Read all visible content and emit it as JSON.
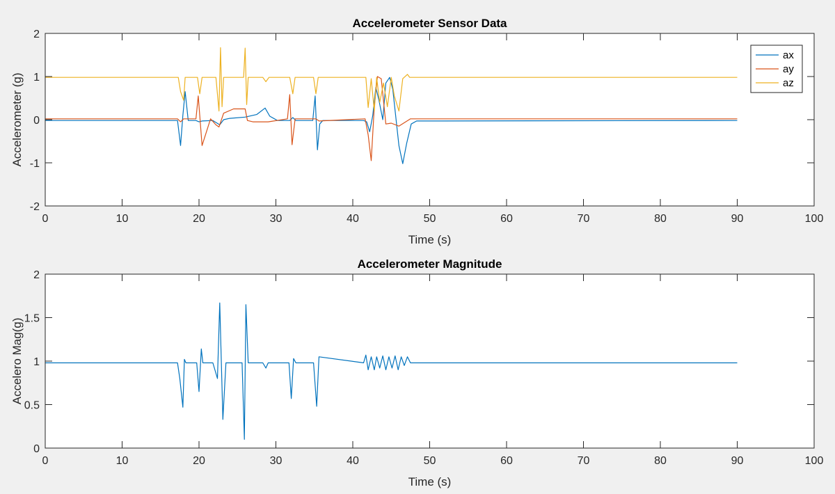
{
  "chart_data": [
    {
      "type": "line",
      "title": "Accelerometer Sensor Data",
      "xlabel": "Time (s)",
      "ylabel": "Accelerometer (g)",
      "xlim": [
        0,
        100
      ],
      "ylim": [
        -2,
        2
      ],
      "xticks": [
        "0",
        "10",
        "20",
        "30",
        "40",
        "50",
        "60",
        "70",
        "80",
        "90",
        "100"
      ],
      "yticks": [
        "-2",
        "-1",
        "0",
        "1",
        "2"
      ],
      "grid": false,
      "legend_position": "top-right",
      "series": [
        {
          "name": "ax",
          "color": "#0072BD",
          "x": [
            0,
            17.2,
            17.6,
            17.9,
            18.2,
            18.6,
            19.6,
            20.0,
            20.4,
            21.8,
            22.7,
            23.2,
            24.0,
            26.0,
            27.5,
            28.6,
            29.2,
            30.2,
            31.8,
            32.2,
            32.6,
            34.8,
            35.1,
            35.4,
            35.7,
            36.1,
            41.4,
            41.8,
            42.2,
            42.6,
            43.0,
            43.4,
            43.9,
            44.3,
            44.8,
            45.2,
            45.6,
            46.0,
            46.5,
            47.0,
            47.6,
            48.3,
            90
          ],
          "y": [
            -0.02,
            -0.02,
            -0.6,
            0.1,
            0.65,
            -0.02,
            -0.02,
            -0.05,
            -0.03,
            -0.02,
            -0.12,
            0.0,
            0.03,
            0.06,
            0.12,
            0.27,
            0.08,
            -0.02,
            -0.02,
            0.05,
            -0.02,
            -0.02,
            0.55,
            -0.7,
            -0.1,
            -0.02,
            -0.02,
            -0.05,
            -0.28,
            0.1,
            0.75,
            0.45,
            0.0,
            0.85,
            0.98,
            0.7,
            0.05,
            -0.6,
            -1.02,
            -0.55,
            -0.1,
            -0.03,
            -0.02
          ]
        },
        {
          "name": "ay",
          "color": "#D95319",
          "x": [
            0,
            17.2,
            17.6,
            18.0,
            19.6,
            19.9,
            20.4,
            21.5,
            22.2,
            22.6,
            23.2,
            24.5,
            26.0,
            26.3,
            27.0,
            29.0,
            31.5,
            31.8,
            32.1,
            32.5,
            35.2,
            35.6,
            41.6,
            42.0,
            42.4,
            42.8,
            43.2,
            43.7,
            44.3,
            45.0,
            46.0,
            47.5,
            90
          ],
          "y": [
            0.02,
            0.02,
            -0.05,
            0.02,
            0.02,
            0.55,
            -0.6,
            0.02,
            -0.12,
            -0.17,
            0.15,
            0.25,
            0.25,
            -0.02,
            -0.05,
            -0.05,
            0.02,
            0.58,
            -0.58,
            0.02,
            0.02,
            -0.03,
            0.02,
            -0.35,
            -0.95,
            0.3,
            1.0,
            0.95,
            -0.1,
            -0.08,
            -0.15,
            0.02,
            0.02
          ]
        },
        {
          "name": "az",
          "color": "#EDB120",
          "x": [
            0,
            17.3,
            17.6,
            18.0,
            18.2,
            19.8,
            20.1,
            20.4,
            22.2,
            22.6,
            22.8,
            23.0,
            23.2,
            25.8,
            26.0,
            26.2,
            26.4,
            28.3,
            28.7,
            29.1,
            31.8,
            32.2,
            32.5,
            34.9,
            35.2,
            35.5,
            41.7,
            42.0,
            42.4,
            42.8,
            43.1,
            43.5,
            44.0,
            44.5,
            45.0,
            45.4,
            46.0,
            46.5,
            47.1,
            47.4,
            48.0,
            90
          ],
          "y": [
            0.98,
            0.98,
            0.65,
            0.45,
            0.98,
            0.98,
            0.6,
            0.98,
            0.98,
            0.2,
            1.67,
            0.3,
            0.98,
            0.98,
            1.66,
            0.35,
            0.98,
            0.98,
            0.88,
            0.98,
            0.98,
            0.6,
            0.98,
            0.98,
            0.6,
            0.98,
            0.98,
            0.28,
            0.95,
            0.2,
            0.98,
            0.4,
            0.85,
            0.3,
            0.98,
            0.55,
            0.2,
            0.95,
            1.05,
            0.98,
            0.98,
            0.98
          ]
        }
      ]
    },
    {
      "type": "line",
      "title": "Accelerometer Magnitude",
      "xlabel": "Time (s)",
      "ylabel": "Accelero Mag(g)",
      "xlim": [
        0,
        100
      ],
      "ylim": [
        0,
        2
      ],
      "xticks": [
        "0",
        "10",
        "20",
        "30",
        "40",
        "50",
        "60",
        "70",
        "80",
        "90",
        "100"
      ],
      "yticks": [
        "0",
        "0.5",
        "1",
        "1.5",
        "2"
      ],
      "grid": false,
      "series": [
        {
          "name": "magnitude",
          "color": "#0072BD",
          "x": [
            0,
            17.2,
            17.5,
            17.9,
            18.1,
            18.3,
            19.7,
            20.0,
            20.3,
            20.5,
            21.8,
            22.4,
            22.7,
            23.1,
            23.5,
            25.6,
            25.9,
            26.1,
            26.4,
            28.3,
            28.7,
            29.0,
            31.7,
            32.0,
            32.3,
            32.6,
            34.9,
            35.3,
            35.6,
            41.4,
            41.7,
            42.0,
            42.4,
            42.8,
            43.1,
            43.5,
            43.9,
            44.3,
            44.7,
            45.1,
            45.5,
            45.9,
            46.3,
            46.7,
            47.1,
            47.5,
            48.0,
            90
          ],
          "y": [
            0.98,
            0.98,
            0.8,
            0.47,
            1.02,
            0.98,
            0.98,
            0.65,
            1.14,
            0.98,
            0.98,
            0.8,
            1.67,
            0.33,
            0.98,
            0.98,
            0.1,
            1.65,
            0.98,
            0.98,
            0.92,
            0.98,
            0.98,
            0.57,
            1.03,
            0.98,
            0.98,
            0.48,
            1.05,
            0.98,
            1.07,
            0.9,
            1.05,
            0.9,
            1.05,
            0.92,
            1.06,
            0.9,
            1.05,
            0.92,
            1.06,
            0.9,
            1.05,
            0.95,
            1.05,
            0.98,
            0.98,
            0.98
          ]
        }
      ]
    }
  ]
}
